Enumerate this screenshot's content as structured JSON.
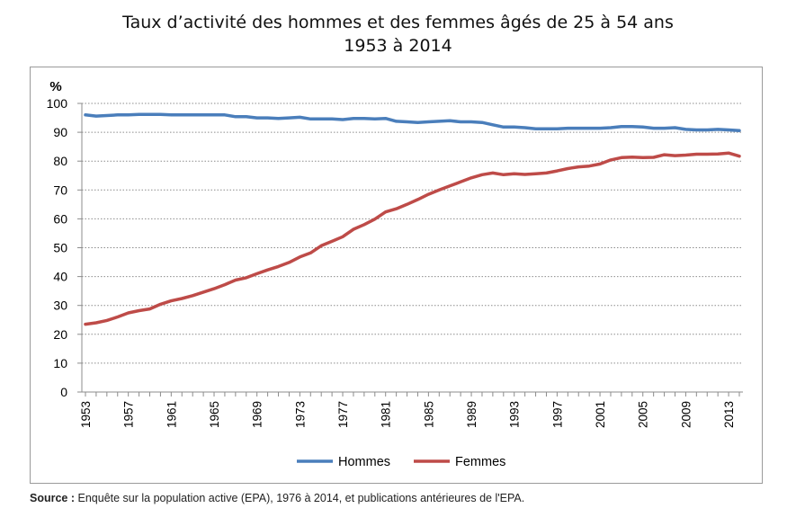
{
  "chart_data": {
    "type": "line",
    "title": "Taux d’activité des hommes et des femmes âgés de 25 à 54 ans",
    "subtitle": "1953 à 2014",
    "ylabel": "%",
    "xlabel": "",
    "ylim": [
      0,
      100
    ],
    "yticks": [
      0,
      10,
      20,
      30,
      40,
      50,
      60,
      70,
      80,
      90,
      100
    ],
    "xticks": [
      "1953",
      "1957",
      "1961",
      "1965",
      "1969",
      "1973",
      "1977",
      "1981",
      "1985",
      "1989",
      "1993",
      "1997",
      "2001",
      "2005",
      "2009",
      "2013"
    ],
    "grid": true,
    "legend": "bottom",
    "x": [
      1953,
      1954,
      1955,
      1956,
      1957,
      1958,
      1959,
      1960,
      1961,
      1962,
      1963,
      1964,
      1965,
      1966,
      1967,
      1968,
      1969,
      1970,
      1971,
      1972,
      1973,
      1974,
      1975,
      1976,
      1977,
      1978,
      1979,
      1980,
      1981,
      1982,
      1983,
      1984,
      1985,
      1986,
      1987,
      1988,
      1989,
      1990,
      1991,
      1992,
      1993,
      1994,
      1995,
      1996,
      1997,
      1998,
      1999,
      2000,
      2001,
      2002,
      2003,
      2004,
      2005,
      2006,
      2007,
      2008,
      2009,
      2010,
      2011,
      2012,
      2013,
      2014
    ],
    "series": [
      {
        "name": "Hommes",
        "color": "#4a7ebb",
        "values": [
          96.0,
          95.6,
          95.8,
          96.0,
          96.0,
          96.2,
          96.2,
          96.2,
          96.0,
          96.0,
          96.0,
          96.0,
          96.0,
          96.0,
          95.4,
          95.4,
          95.0,
          95.0,
          94.8,
          95.0,
          95.2,
          94.6,
          94.6,
          94.6,
          94.4,
          94.8,
          94.8,
          94.6,
          94.8,
          93.8,
          93.6,
          93.4,
          93.6,
          93.8,
          94.0,
          93.6,
          93.6,
          93.4,
          92.6,
          91.8,
          91.8,
          91.6,
          91.2,
          91.2,
          91.2,
          91.4,
          91.4,
          91.4,
          91.4,
          91.6,
          92.0,
          92.0,
          91.8,
          91.4,
          91.4,
          91.6,
          91.0,
          90.8,
          90.8,
          91.0,
          90.8,
          90.6
        ]
      },
      {
        "name": "Femmes",
        "color": "#be4b48",
        "values": [
          23.5,
          24.0,
          24.8,
          26.0,
          27.4,
          28.2,
          28.8,
          30.4,
          31.6,
          32.4,
          33.4,
          34.6,
          35.8,
          37.2,
          38.8,
          39.6,
          41.0,
          42.3,
          43.5,
          44.9,
          46.8,
          48.2,
          50.7,
          52.2,
          53.8,
          56.4,
          58.0,
          59.9,
          62.4,
          63.5,
          65.0,
          66.7,
          68.5,
          70.0,
          71.4,
          72.8,
          74.2,
          75.3,
          75.9,
          75.3,
          75.6,
          75.4,
          75.6,
          75.9,
          76.6,
          77.4,
          78.0,
          78.3,
          79.0,
          80.4,
          81.2,
          81.4,
          81.2,
          81.3,
          82.2,
          81.9,
          82.1,
          82.4,
          82.4,
          82.5,
          82.8,
          81.7
        ]
      }
    ]
  },
  "source": {
    "label": "Source :",
    "text": "Enquête sur la population active (EPA), 1976 à 2014, et publications antérieures de l'EPA."
  }
}
